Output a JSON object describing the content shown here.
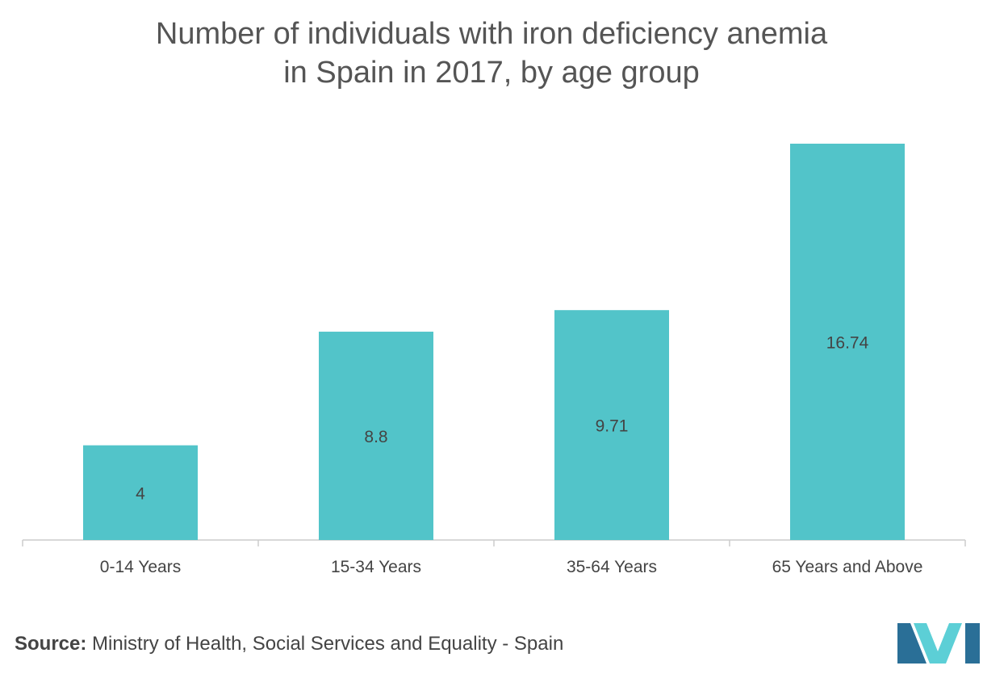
{
  "chart_data": {
    "type": "bar",
    "title_line1": "Number of individuals with iron deficiency anemia",
    "title_line2": "in Spain in 2017, by age group",
    "categories": [
      "0-14 Years",
      "15-34 Years",
      "35-64 Years",
      "65 Years and Above"
    ],
    "values": [
      4,
      8.8,
      9.71,
      16.74
    ],
    "value_labels": [
      "4",
      "8.8",
      "9.71",
      "16.74"
    ],
    "ylim": [
      0,
      16.74
    ],
    "grid": false,
    "legend": "none",
    "colors": {
      "bar": "#52c4c9",
      "axis": "#cccccc",
      "label": "#444444"
    }
  },
  "source": {
    "label": "Source:",
    "text": "Ministry of Health, Social Services and Equality - Spain"
  },
  "logo": {
    "icon": "mordor-logo-icon",
    "colors": {
      "dark": "#2a6f97",
      "light": "#5ccfd6"
    }
  }
}
